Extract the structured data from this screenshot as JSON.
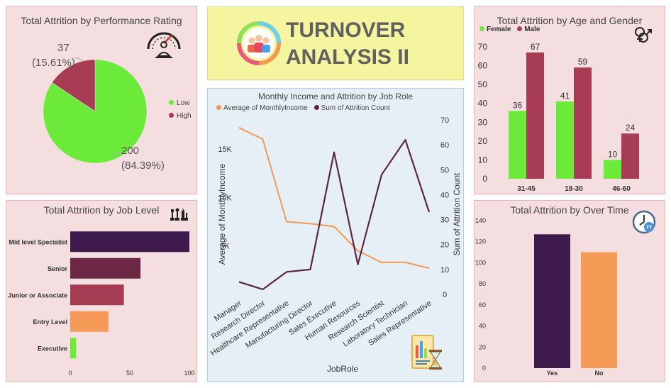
{
  "dashboard": {
    "title_line1": "TURNOVER",
    "title_line2": "ANALYSIS II"
  },
  "colors": {
    "green": "#6cea3a",
    "maroon": "#a63d55",
    "dark_purple": "#3f1a4d",
    "orange": "#f59a56",
    "line_orange": "#f29a55",
    "line_purple": "#5d2448"
  },
  "icons": {
    "performance": "speedometer-person-icon",
    "age_gender": "gender-symbol-icon",
    "job_level": "chess-pieces-icon",
    "over_time": "overtime-clock-icon",
    "job_role": "hourglass-report-icon",
    "logo": "team-people-icon"
  },
  "chart_data": [
    {
      "id": "performance",
      "type": "pie",
      "title": "Total Attrition by Performance Rating",
      "slices": [
        {
          "name": "Low",
          "value": 200,
          "label_value": "200",
          "label_pct": "(84.39%)"
        },
        {
          "name": "High",
          "value": 37,
          "label_value": "37",
          "label_pct": "(15.61%)"
        }
      ],
      "legend": [
        "Low",
        "High"
      ],
      "legend_position": "right"
    },
    {
      "id": "age_gender",
      "type": "bar",
      "title": "Total Attrition by Age and Gender",
      "categories": [
        "31-45",
        "18-30",
        "46-60"
      ],
      "series": [
        {
          "name": "Female",
          "values": [
            36,
            41,
            10
          ]
        },
        {
          "name": "Male",
          "values": [
            67,
            59,
            24
          ]
        }
      ],
      "yticks": [
        "0",
        "10",
        "20",
        "30",
        "40",
        "50",
        "60",
        "70"
      ],
      "ylim": [
        0,
        70
      ],
      "legend_position": "top-left",
      "grid": false
    },
    {
      "id": "job_level",
      "type": "bar",
      "orientation": "horizontal",
      "title": "Total Attrition by Job Level",
      "categories": [
        "Mid level Specialist",
        "Senior",
        "Junior or Associate",
        "Entry Level",
        "Executive"
      ],
      "values": [
        100,
        59,
        45,
        32,
        5
      ],
      "xticks": [
        "0",
        "50",
        "100"
      ],
      "xlim": [
        0,
        100
      ],
      "grid": false
    },
    {
      "id": "job_role",
      "type": "line",
      "title": "Monthly Income and Attrition by Job Role",
      "categories": [
        "Manager",
        "Research Director",
        "Healthcare Representative",
        "Manufacturing Director",
        "Sales Executive",
        "Human Resources",
        "Research Scientist",
        "Laboratory Technician",
        "Sales Representative"
      ],
      "series": [
        {
          "name": "Average of MonthlyIncome",
          "axis": "left",
          "values": [
            17200,
            16000,
            7500,
            7300,
            7000,
            4500,
            3300,
            3300,
            2700
          ]
        },
        {
          "name": "Sum of Attrition Count",
          "axis": "right",
          "values": [
            5,
            2,
            9,
            10,
            57,
            12,
            48,
            62,
            33
          ]
        }
      ],
      "xlabel": "JobRole",
      "ylabel": "Average of MonthlyIncome",
      "y2label": "Sum of Attrition Count",
      "yticks": [
        "5K",
        "10K",
        "15K"
      ],
      "ylim": [
        0,
        18000
      ],
      "y2ticks": [
        "0",
        "10",
        "20",
        "30",
        "40",
        "50",
        "60",
        "70"
      ],
      "y2lim": [
        0,
        70
      ],
      "legend_position": "top-left",
      "grid": false
    },
    {
      "id": "over_time",
      "type": "bar",
      "title": "Total Attrition by Over Time",
      "categories": [
        "Yes",
        "No"
      ],
      "values": [
        127,
        110
      ],
      "yticks": [
        "0",
        "20",
        "40",
        "60",
        "80",
        "100",
        "120",
        "140"
      ],
      "ylim": [
        0,
        140
      ],
      "grid": false
    }
  ]
}
